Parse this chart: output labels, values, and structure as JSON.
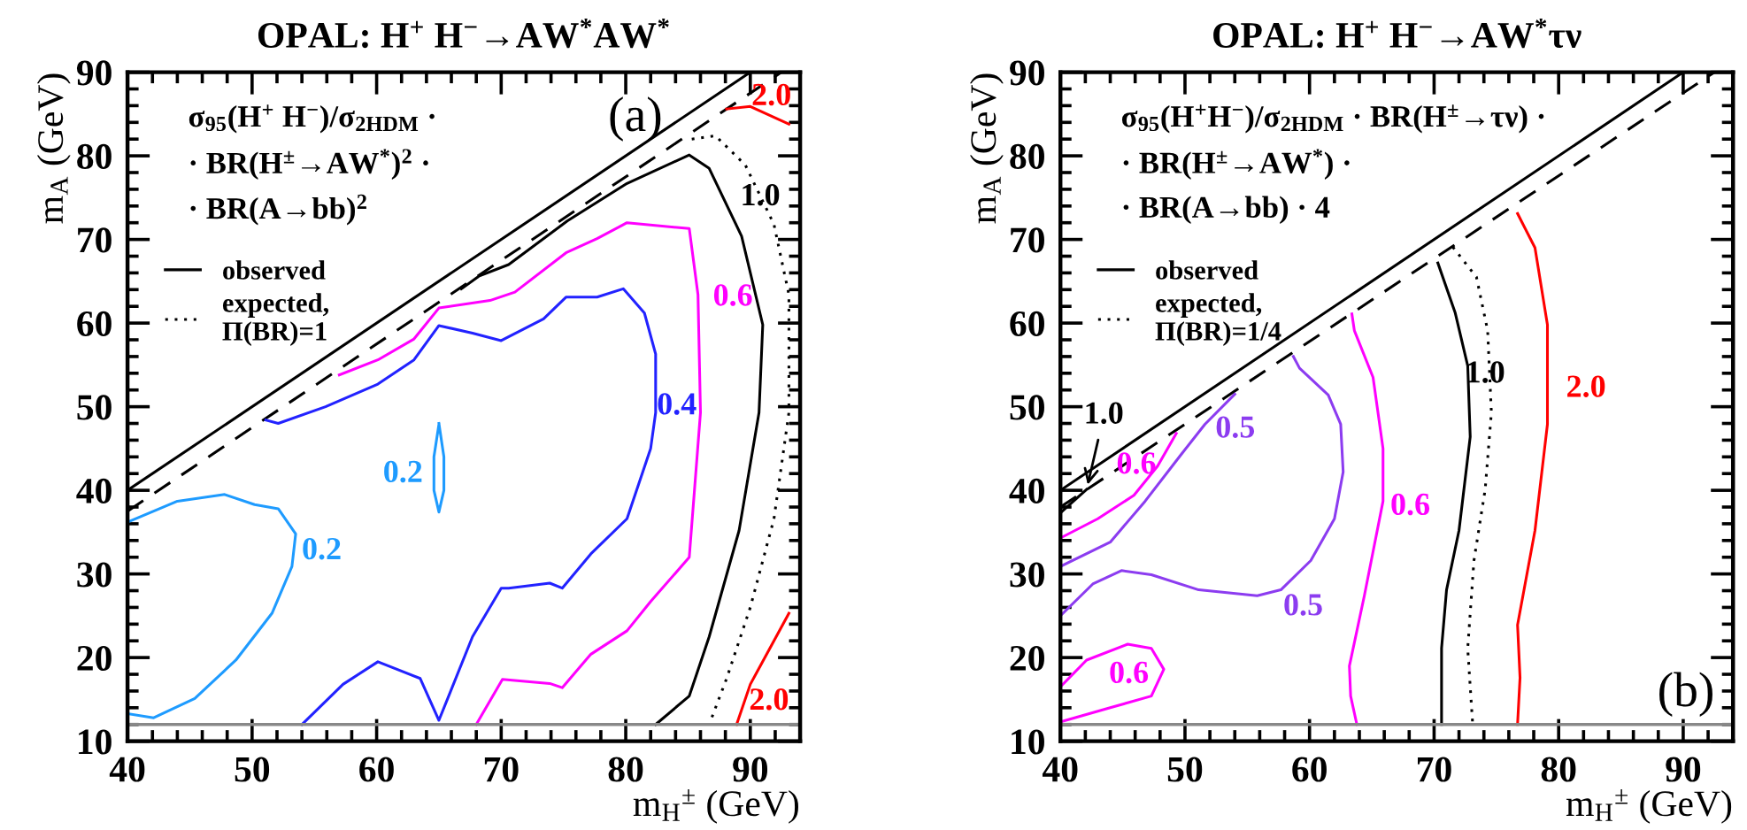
{
  "chart_data": [
    {
      "type": "line",
      "title": "OPAL: H$^{+}$ H$^{−}$→AW$^{*}$AW$^{*}$",
      "xlabel": "m$_{H}$$^{±}$ (GeV)",
      "ylabel": "m$_{A}$ (GeV)",
      "xlim": [
        40,
        94
      ],
      "ylim": [
        10,
        90
      ],
      "xticks": [
        40,
        50,
        60,
        70,
        80,
        90
      ],
      "yticks": [
        10,
        20,
        30,
        40,
        50,
        60,
        70,
        80,
        90
      ],
      "grid": false,
      "legend": "top left",
      "series": [
        {
          "color": "#000000",
          "line_style": "solid",
          "x": [
            40,
            90
          ],
          "values": [
            40,
            90
          ]
        },
        {
          "color": "#000000",
          "line_style": "dashed",
          "x": [
            40,
            92.5
          ],
          "values": [
            37.5,
            90
          ]
        },
        {
          "color": "#1e9bff",
          "line_style": "solid",
          "x": [
            40,
            44,
            47.8,
            50.2,
            52.1,
            53.5,
            53.2,
            51.6,
            48.7,
            45.4,
            42.1,
            40
          ],
          "values": [
            36.2,
            38.7,
            39.5,
            38.3,
            37.8,
            34.8,
            30.9,
            25.3,
            19.7,
            15.1,
            12.8,
            13.3
          ]
        },
        {
          "color": "#1e9bff",
          "line_style": "solid",
          "x": [
            65,
            65.4,
            65.4,
            65,
            64.6,
            64.6,
            65
          ],
          "values": [
            48,
            44,
            40,
            37.4,
            40,
            44,
            47.9
          ]
        },
        {
          "color": "#2222ff",
          "line_style": "solid",
          "x": [
            51.1,
            52.1,
            55.9,
            60.1,
            63,
            65,
            67.7,
            70,
            73.4,
            75.2,
            77.7,
            79.8,
            81.5,
            82.4,
            82.4,
            82,
            80.1,
            77.2,
            74.9,
            73.9,
            70.6,
            70,
            67.7,
            65,
            63.5,
            60.1,
            57.3,
            54
          ],
          "values": [
            48.4,
            48,
            50,
            52.7,
            55.6,
            59.7,
            58.8,
            57.9,
            60.5,
            63.1,
            63.1,
            64.1,
            61.2,
            56.3,
            49.3,
            45,
            36.6,
            32.4,
            28.3,
            28.9,
            28.3,
            28.3,
            22.5,
            12.5,
            17.5,
            19.5,
            16.8,
            12
          ]
        },
        {
          "color": "#ff00ff",
          "line_style": "solid",
          "x": [
            57,
            60.1,
            63,
            65,
            69.1,
            71.1,
            75.2,
            77.7,
            80.1,
            85.1,
            85.8,
            86,
            85.1,
            82,
            80.1,
            77.2,
            74.9,
            73.9,
            70.1,
            68
          ],
          "values": [
            53.8,
            55.6,
            58.1,
            61.8,
            62.7,
            63.7,
            68.4,
            70.1,
            72,
            71.3,
            63.4,
            49.3,
            32,
            26.7,
            23.2,
            20.4,
            16.4,
            16.9,
            17.4,
            12
          ]
        },
        {
          "name": "observed",
          "color": "#000000",
          "line_style": "solid",
          "x": [
            66.8,
            68.2,
            70.6,
            75.3,
            80.1,
            85.1,
            86.7,
            89.3,
            91,
            90.7,
            89.1,
            86.7,
            85.1,
            82.4
          ],
          "values": [
            64.1,
            65.6,
            67,
            72.2,
            76.7,
            80.1,
            78.5,
            70.4,
            59.8,
            49.3,
            35.2,
            22.5,
            15.4,
            12
          ]
        },
        {
          "name": "expected,\nΠ(BR)=1",
          "color": "#000000",
          "line_style": "dotted",
          "x": [
            85.3,
            87.2,
            89.6,
            91.9,
            93.1,
            93.1,
            91.9,
            90,
            88.1,
            86.7
          ],
          "values": [
            82,
            82.4,
            78.9,
            71.8,
            63.4,
            49.3,
            36.6,
            26,
            17.5,
            12
          ]
        },
        {
          "color": "#ff0000",
          "line_style": "solid",
          "x": [
            88.1,
            90,
            93.1
          ],
          "values": [
            85.6,
            85.9,
            83.8
          ]
        },
        {
          "color": "#ff0000",
          "line_style": "solid",
          "x": [
            88.9,
            90,
            93.1
          ],
          "values": [
            12,
            16.8,
            25.3
          ]
        }
      ],
      "ref_lines": [
        {
          "axis": "y",
          "value": 12,
          "color": "#888888"
        }
      ],
      "annotations": [
        "σ$_{95}$(H$^{+}$ H$^{−}$)/σ$_{2HDM}$ ·",
        "· BR(H$^{±}$→AW$^{*}$)$^{2}$ ·",
        "· BR(A→bb)$^{2}$",
        "(a)",
        {
          "text": "0.2",
          "x": 53.5,
          "y": 34.8
        },
        {
          "text": "0.2",
          "x": 64.6,
          "y": 40
        },
        {
          "text": "0.4",
          "x": 82.4,
          "y": 49.3
        },
        {
          "text": "0.6",
          "x": 85.8,
          "y": 63.4
        },
        {
          "text": "1.0",
          "x": 89.3,
          "y": 70.4
        },
        {
          "text": "2.0",
          "x": 90,
          "y": 85.9
        },
        {
          "text": "2.0",
          "x": 90,
          "y": 16.8
        }
      ]
    },
    {
      "type": "line",
      "title": "OPAL: H$^{+}$ H$^{−}$→AW$^{*}$τν",
      "xlabel": "m$_{H}$$^{±}$ (GeV)",
      "ylabel": "m$_{A}$ (GeV)",
      "xlim": [
        40,
        94
      ],
      "ylim": [
        10,
        90
      ],
      "xticks": [
        40,
        50,
        60,
        70,
        80,
        90
      ],
      "yticks": [
        10,
        20,
        30,
        40,
        50,
        60,
        70,
        80,
        90
      ],
      "grid": false,
      "legend": "top left",
      "series": [
        {
          "color": "#000000",
          "line_style": "solid",
          "x": [
            40,
            90
          ],
          "values": [
            40,
            90
          ]
        },
        {
          "color": "#000000",
          "line_style": "dashed",
          "x": [
            40,
            92.5
          ],
          "values": [
            38,
            90
          ]
        },
        {
          "color": "#000000",
          "line_style": "solid",
          "x": [
            40,
            42.1
          ],
          "values": [
            37.3,
            40.1
          ]
        },
        {
          "color": "#8c3cf0",
          "line_style": "solid",
          "x": [
            40,
            44,
            46.8,
            49.7,
            51.6,
            54
          ],
          "values": [
            30.9,
            33.8,
            38.7,
            44.3,
            47.9,
            51.5
          ]
        },
        {
          "color": "#8c3cf0",
          "line_style": "solid",
          "x": [
            40,
            42.6,
            44.9,
            47.3,
            51.1,
            55.8,
            57.7,
            60.1,
            62,
            62.7,
            62.5,
            61.5,
            59.2,
            58.7
          ],
          "values": [
            25,
            28.8,
            30.4,
            29.9,
            28.1,
            27.4,
            28.1,
            31.6,
            36.6,
            42.2,
            47.9,
            51.4,
            54.6,
            56
          ]
        },
        {
          "color": "#ff00ff",
          "line_style": "solid",
          "x": [
            40,
            43,
            45.9,
            47.8,
            49.3
          ],
          "values": [
            34.3,
            36.6,
            39.4,
            42.9,
            46.8
          ]
        },
        {
          "color": "#ff00ff",
          "line_style": "solid",
          "x": [
            40,
            42.1,
            45.4,
            47.3,
            48.3,
            47.3,
            44,
            40
          ],
          "values": [
            16.5,
            19.7,
            21.6,
            21.1,
            18.6,
            15.4,
            14,
            12.3
          ]
        },
        {
          "color": "#ff00ff",
          "line_style": "solid",
          "x": [
            63.4,
            63.6,
            65.1,
            65.9,
            65.9,
            64.4,
            63.2,
            63.3,
            63.8
          ],
          "values": [
            61.1,
            59.1,
            53.5,
            45,
            38.7,
            27.4,
            19,
            15.4,
            12
          ]
        },
        {
          "name": "observed",
          "color": "#000000",
          "line_style": "solid",
          "x": [
            70.3,
            71.7,
            72.7,
            72.9,
            72,
            71,
            70.6,
            70.6
          ],
          "values": [
            67.2,
            61.2,
            54.9,
            46.4,
            35.2,
            28.1,
            21.1,
            12
          ]
        },
        {
          "name": "expected,\nΠ(BR)=1/4",
          "color": "#000000",
          "line_style": "dotted",
          "x": [
            71.5,
            73.4,
            74.3,
            74.6,
            74.1,
            73.2,
            72.7,
            73.1
          ],
          "values": [
            69.1,
            65.5,
            59.1,
            49.3,
            40.1,
            31.6,
            21.1,
            12
          ]
        },
        {
          "color": "#ff0000",
          "line_style": "solid",
          "x": [
            76.7,
            78.1,
            79.1,
            79.1,
            78.1,
            76.7,
            76.9,
            76.7
          ],
          "values": [
            73.1,
            69,
            59.8,
            47.9,
            35.2,
            23.9,
            17.6,
            12
          ]
        }
      ],
      "ref_lines": [
        {
          "axis": "y",
          "value": 12,
          "color": "#888888"
        }
      ],
      "annotations": [
        "σ$_{95}$(H$^{+}$H$^{−}$)/σ$_{2HDM}$ · BR(H$^{±}$→τν) ·",
        "· BR(H$^{±}$→AW$^{*}$) ·",
        "· BR(A→bb) · 4",
        "(b)",
        {
          "text": "1.0",
          "x": 42.1,
          "y": 40.1
        },
        {
          "text": "0.6",
          "x": 45.9,
          "y": 39.4
        },
        {
          "text": "0.5",
          "x": 49.7,
          "y": 44.3
        },
        {
          "text": "0.5",
          "x": 55.8,
          "y": 27.4
        },
        {
          "text": "0.6",
          "x": 48.3,
          "y": 18.6
        },
        {
          "text": "0.6",
          "x": 65.9,
          "y": 38.7
        },
        {
          "text": "1.0",
          "x": 72.7,
          "y": 54.9
        },
        {
          "text": "2.0",
          "x": 79.1,
          "y": 47.9
        }
      ]
    }
  ]
}
